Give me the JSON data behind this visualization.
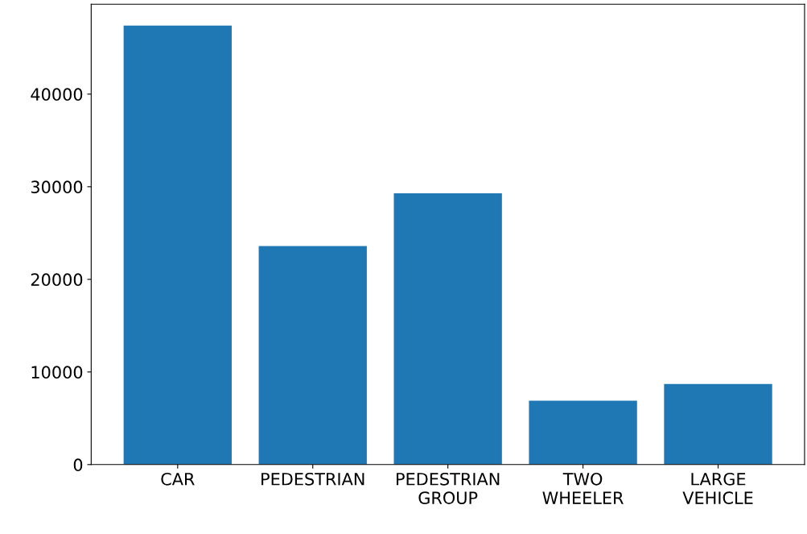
{
  "chart_data": {
    "type": "bar",
    "categories": [
      "CAR",
      "PEDESTRIAN",
      "PEDESTRIAN\nGROUP",
      "TWO\nWHEELER",
      "LARGE\nVEHICLE"
    ],
    "values": [
      47400,
      23600,
      29300,
      6900,
      8700
    ],
    "color": "#1f77b4",
    "ylim": [
      0,
      49700
    ],
    "yticks": [
      0,
      10000,
      20000,
      30000,
      40000
    ],
    "grid": false
  }
}
